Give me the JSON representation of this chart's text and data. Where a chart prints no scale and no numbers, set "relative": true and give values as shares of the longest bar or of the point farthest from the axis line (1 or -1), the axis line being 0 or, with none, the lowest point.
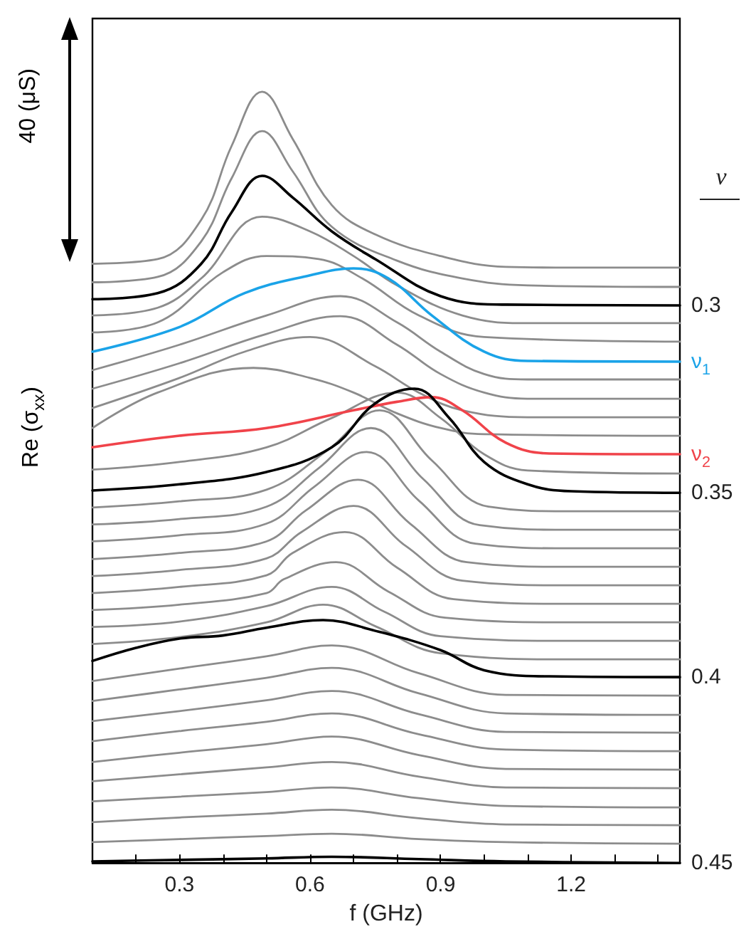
{
  "chart_data": {
    "type": "line",
    "relative": true,
    "xlabel": "f (GHz)",
    "ylabel": "Re (σ$_{xx}$)",
    "legend_title": "ν",
    "annotations": [
      "40 (μS)"
    ],
    "xlim": [
      0.1,
      1.45
    ],
    "xticks": [
      {
        "value": 0.2,
        "label": null
      },
      0.3,
      {
        "value": 0.4,
        "label": null
      },
      {
        "value": 0.5,
        "label": null
      },
      0.6,
      {
        "value": 0.7,
        "label": null
      },
      {
        "value": 0.8,
        "label": null
      },
      0.9,
      {
        "value": 1.0,
        "label": null
      },
      {
        "value": 1.1,
        "label": null
      },
      1.2,
      {
        "value": 1.3,
        "label": null
      },
      {
        "value": 1.4,
        "label": null
      }
    ],
    "series": [
      {
        "color": "#8c8c8c",
        "x": [
          0.1,
          0.25,
          0.35,
          0.42,
          0.49,
          0.56,
          0.65,
          0.75,
          0.9,
          1.05,
          1.2,
          1.45
        ],
        "values": [
          0.777,
          0.783,
          0.834,
          0.93,
          1,
          0.939,
          0.853,
          0.815,
          0.787,
          0.773,
          0.772,
          0.772
        ]
      },
      {
        "color": "#8c8c8c",
        "x": [
          0.1,
          0.25,
          0.35,
          0.42,
          0.49,
          0.56,
          0.65,
          0.8,
          0.95,
          1.1,
          1.45
        ],
        "values": [
          0.753,
          0.76,
          0.806,
          0.888,
          0.949,
          0.897,
          0.825,
          0.781,
          0.758,
          0.749,
          0.747
        ]
      },
      {
        "name": "0.3",
        "color": "#000000",
        "x": [
          0.1,
          0.25,
          0.35,
          0.42,
          0.49,
          0.56,
          0.65,
          0.75,
          0.9,
          1.05,
          1.45
        ],
        "values": [
          0.731,
          0.739,
          0.777,
          0.844,
          0.891,
          0.863,
          0.819,
          0.783,
          0.735,
          0.724,
          0.723
        ]
      },
      {
        "color": "#8c8c8c",
        "x": [
          0.1,
          0.25,
          0.35,
          0.49,
          0.6,
          0.7,
          0.8,
          0.95,
          1.1,
          1.45
        ],
        "values": [
          0.71,
          0.72,
          0.758,
          0.838,
          0.819,
          0.787,
          0.749,
          0.71,
          0.7,
          0.7
        ]
      },
      {
        "color": "#8c8c8c",
        "x": [
          0.1,
          0.25,
          0.4,
          0.5,
          0.62,
          0.72,
          0.85,
          1.0,
          1.45
        ],
        "values": [
          0.688,
          0.701,
          0.766,
          0.787,
          0.783,
          0.758,
          0.71,
          0.682,
          0.676
        ]
      },
      {
        "name": "ν$_{1}$",
        "color": "#1aa3e8",
        "x": [
          0.1,
          0.3,
          0.45,
          0.6,
          0.7,
          0.78,
          0.88,
          1.0,
          1.1,
          1.45
        ],
        "values": [
          0.663,
          0.695,
          0.739,
          0.762,
          0.771,
          0.758,
          0.71,
          0.663,
          0.651,
          0.65
        ]
      },
      {
        "color": "#8c8c8c",
        "x": [
          0.1,
          0.3,
          0.5,
          0.67,
          0.8,
          0.9,
          1.0,
          1.1,
          1.45
        ],
        "values": [
          0.639,
          0.672,
          0.71,
          0.735,
          0.701,
          0.663,
          0.634,
          0.627,
          0.627
        ]
      },
      {
        "color": "#8c8c8c",
        "x": [
          0.1,
          0.3,
          0.5,
          0.67,
          0.8,
          0.9,
          1.0,
          1.1,
          1.45
        ],
        "values": [
          0.615,
          0.648,
          0.686,
          0.709,
          0.672,
          0.634,
          0.61,
          0.602,
          0.602
        ]
      },
      {
        "color": "#8c8c8c",
        "x": [
          0.1,
          0.3,
          0.45,
          0.6,
          0.75,
          0.85,
          0.95,
          1.1,
          1.45
        ],
        "values": [
          0.59,
          0.629,
          0.663,
          0.682,
          0.644,
          0.61,
          0.587,
          0.578,
          0.578
        ]
      },
      {
        "color": "#8c8c8c",
        "x": [
          0.1,
          0.25,
          0.47,
          0.6,
          0.7,
          0.8,
          0.9,
          1.0,
          1.45
        ],
        "values": [
          0.564,
          0.61,
          0.642,
          0.629,
          0.61,
          0.583,
          0.564,
          0.556,
          0.554
        ]
      },
      {
        "name": "ν$_{2}$",
        "color": "#f0434a",
        "x": [
          0.1,
          0.3,
          0.5,
          0.7,
          0.8,
          0.88,
          0.95,
          1.05,
          1.15,
          1.45
        ],
        "values": [
          0.539,
          0.554,
          0.564,
          0.587,
          0.598,
          0.604,
          0.587,
          0.545,
          0.531,
          0.53
        ]
      },
      {
        "color": "#8c8c8c",
        "x": [
          0.1,
          0.3,
          0.5,
          0.65,
          0.8,
          0.9,
          1.0,
          1.1,
          1.45
        ],
        "values": [
          0.51,
          0.52,
          0.539,
          0.577,
          0.61,
          0.577,
          0.53,
          0.509,
          0.505
        ]
      },
      {
        "name": "0.35",
        "color": "#000000",
        "x": [
          0.1,
          0.3,
          0.5,
          0.65,
          0.75,
          0.84,
          0.92,
          1.0,
          1.1,
          1.2,
          1.45
        ],
        "values": [
          0.483,
          0.491,
          0.507,
          0.539,
          0.596,
          0.615,
          0.577,
          0.52,
          0.491,
          0.482,
          0.48
        ]
      },
      {
        "color": "#8c8c8c",
        "x": [
          0.1,
          0.3,
          0.5,
          0.64,
          0.76,
          0.88,
          1.01,
          1.2,
          1.45
        ],
        "values": [
          0.461,
          0.469,
          0.484,
          0.535,
          0.587,
          0.522,
          0.462,
          0.456,
          0.456
        ]
      },
      {
        "color": "#8c8c8c",
        "x": [
          0.1,
          0.3,
          0.5,
          0.62,
          0.74,
          0.86,
          0.99,
          1.2,
          1.45
        ],
        "values": [
          0.439,
          0.446,
          0.462,
          0.512,
          0.564,
          0.498,
          0.438,
          0.432,
          0.432
        ]
      },
      {
        "color": "#8c8c8c",
        "x": [
          0.1,
          0.3,
          0.5,
          0.61,
          0.73,
          0.85,
          0.98,
          1.2,
          1.45
        ],
        "values": [
          0.417,
          0.425,
          0.44,
          0.488,
          0.533,
          0.47,
          0.414,
          0.408,
          0.408
        ]
      },
      {
        "color": "#8c8c8c",
        "x": [
          0.1,
          0.3,
          0.5,
          0.59,
          0.71,
          0.83,
          0.96,
          1.2,
          1.45
        ],
        "values": [
          0.394,
          0.402,
          0.417,
          0.457,
          0.497,
          0.44,
          0.39,
          0.384,
          0.384
        ]
      },
      {
        "color": "#8c8c8c",
        "x": [
          0.1,
          0.3,
          0.5,
          0.58,
          0.7,
          0.82,
          0.95,
          1.2,
          1.45
        ],
        "values": [
          0.372,
          0.38,
          0.395,
          0.429,
          0.463,
          0.411,
          0.366,
          0.36,
          0.36
        ]
      },
      {
        "color": "#8c8c8c",
        "x": [
          0.1,
          0.3,
          0.5,
          0.56,
          0.68,
          0.8,
          0.93,
          1.2,
          1.45
        ],
        "values": [
          0.35,
          0.358,
          0.373,
          0.402,
          0.429,
          0.383,
          0.342,
          0.336,
          0.336
        ]
      },
      {
        "color": "#8c8c8c",
        "x": [
          0.1,
          0.3,
          0.5,
          0.54,
          0.66,
          0.78,
          0.91,
          1.2,
          1.45
        ],
        "values": [
          0.328,
          0.335,
          0.35,
          0.368,
          0.39,
          0.352,
          0.318,
          0.312,
          0.312
        ]
      },
      {
        "color": "#8c8c8c",
        "x": [
          0.1,
          0.3,
          0.5,
          0.65,
          0.77,
          0.9,
          1.2,
          1.45
        ],
        "values": [
          0.306,
          0.313,
          0.333,
          0.358,
          0.326,
          0.294,
          0.288,
          0.288
        ]
      },
      {
        "color": "#8c8c8c",
        "x": [
          0.1,
          0.3,
          0.5,
          0.63,
          0.75,
          0.9,
          1.2,
          1.45
        ],
        "values": [
          0.284,
          0.293,
          0.312,
          0.335,
          0.307,
          0.272,
          0.264,
          0.264
        ]
      },
      {
        "name": "0.4",
        "color": "#000000",
        "x": [
          0.1,
          0.2,
          0.3,
          0.4,
          0.5,
          0.63,
          0.75,
          0.9,
          1.0,
          1.15,
          1.45
        ],
        "values": [
          0.262,
          0.279,
          0.291,
          0.295,
          0.305,
          0.315,
          0.301,
          0.276,
          0.25,
          0.242,
          0.241
        ]
      },
      {
        "color": "#8c8c8c",
        "x": [
          0.1,
          0.3,
          0.5,
          0.65,
          0.85,
          1.05,
          1.45
        ],
        "values": [
          0.236,
          0.252,
          0.268,
          0.282,
          0.246,
          0.218,
          0.217
        ]
      },
      {
        "color": "#8c8c8c",
        "x": [
          0.1,
          0.3,
          0.5,
          0.65,
          0.85,
          1.05,
          1.45
        ],
        "values": [
          0.21,
          0.225,
          0.24,
          0.253,
          0.22,
          0.194,
          0.192
        ]
      },
      {
        "color": "#8c8c8c",
        "x": [
          0.1,
          0.3,
          0.5,
          0.65,
          0.85,
          1.05,
          1.45
        ],
        "values": [
          0.184,
          0.197,
          0.211,
          0.223,
          0.193,
          0.17,
          0.169
        ]
      },
      {
        "color": "#8c8c8c",
        "x": [
          0.1,
          0.3,
          0.5,
          0.65,
          0.85,
          1.05,
          1.45
        ],
        "values": [
          0.158,
          0.171,
          0.183,
          0.194,
          0.167,
          0.147,
          0.145
        ]
      },
      {
        "color": "#8c8c8c",
        "x": [
          0.1,
          0.3,
          0.5,
          0.65,
          0.85,
          1.05,
          1.45
        ],
        "values": [
          0.131,
          0.143,
          0.154,
          0.164,
          0.14,
          0.122,
          0.121
        ]
      },
      {
        "color": "#8c8c8c",
        "x": [
          0.1,
          0.3,
          0.5,
          0.65,
          0.85,
          1.05,
          1.45
        ],
        "values": [
          0.106,
          0.115,
          0.124,
          0.131,
          0.112,
          0.098,
          0.097
        ]
      },
      {
        "color": "#8c8c8c",
        "x": [
          0.1,
          0.3,
          0.5,
          0.65,
          0.85,
          1.05,
          1.45
        ],
        "values": [
          0.08,
          0.086,
          0.092,
          0.098,
          0.084,
          0.074,
          0.072
        ]
      },
      {
        "color": "#8c8c8c",
        "x": [
          0.1,
          0.3,
          0.5,
          0.65,
          0.85,
          1.05,
          1.45
        ],
        "values": [
          0.053,
          0.059,
          0.064,
          0.069,
          0.058,
          0.05,
          0.049
        ]
      },
      {
        "color": "#8c8c8c",
        "x": [
          0.1,
          0.3,
          0.5,
          0.65,
          0.85,
          1.05,
          1.45
        ],
        "values": [
          0.027,
          0.031,
          0.035,
          0.038,
          0.031,
          0.027,
          0.025
        ]
      },
      {
        "name": "0.45",
        "color": "#000000",
        "x": [
          0.1,
          0.3,
          0.5,
          0.65,
          0.85,
          1.05,
          1.45
        ],
        "values": [
          0.002,
          0.004,
          0.006,
          0.008,
          0.005,
          0.002,
          0
        ]
      }
    ]
  }
}
